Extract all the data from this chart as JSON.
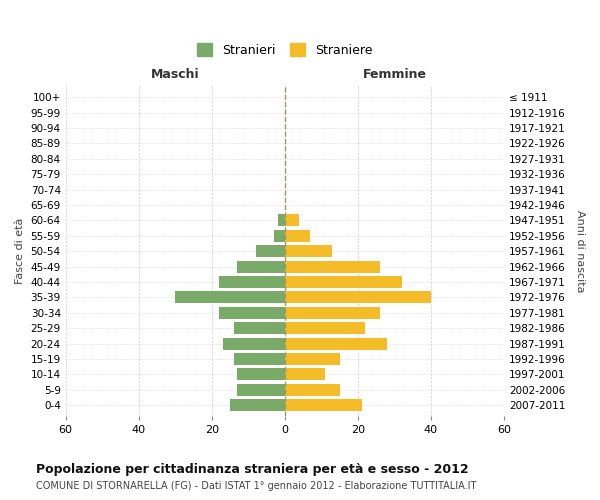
{
  "age_groups": [
    "100+",
    "95-99",
    "90-94",
    "85-89",
    "80-84",
    "75-79",
    "70-74",
    "65-69",
    "60-64",
    "55-59",
    "50-54",
    "45-49",
    "40-44",
    "35-39",
    "30-34",
    "25-29",
    "20-24",
    "15-19",
    "10-14",
    "5-9",
    "0-4"
  ],
  "birth_years": [
    "≤ 1911",
    "1912-1916",
    "1917-1921",
    "1922-1926",
    "1927-1931",
    "1932-1936",
    "1937-1941",
    "1942-1946",
    "1947-1951",
    "1952-1956",
    "1957-1961",
    "1962-1966",
    "1967-1971",
    "1972-1976",
    "1977-1981",
    "1982-1986",
    "1987-1991",
    "1992-1996",
    "1997-2001",
    "2002-2006",
    "2007-2011"
  ],
  "males": [
    0,
    0,
    0,
    0,
    0,
    0,
    0,
    0,
    2,
    3,
    8,
    13,
    18,
    30,
    18,
    14,
    17,
    14,
    13,
    13,
    15
  ],
  "females": [
    0,
    0,
    0,
    0,
    0,
    0,
    0,
    0,
    4,
    7,
    13,
    26,
    32,
    40,
    26,
    22,
    28,
    15,
    11,
    15,
    21
  ],
  "male_color": "#7aaa68",
  "female_color": "#f5bc2a",
  "title": "Popolazione per cittadinanza straniera per età e sesso - 2012",
  "subtitle": "COMUNE DI STORNARELLA (FG) - Dati ISTAT 1° gennaio 2012 - Elaborazione TUTTITALIA.IT",
  "legend_male": "Stranieri",
  "legend_female": "Straniere",
  "header_left": "Maschi",
  "header_right": "Femmine",
  "ylabel_left": "Fasce di età",
  "ylabel_right": "Anni di nascita",
  "xlim": 60,
  "background_color": "#ffffff",
  "grid_color": "#cccccc",
  "zeroline_color": "#999966"
}
